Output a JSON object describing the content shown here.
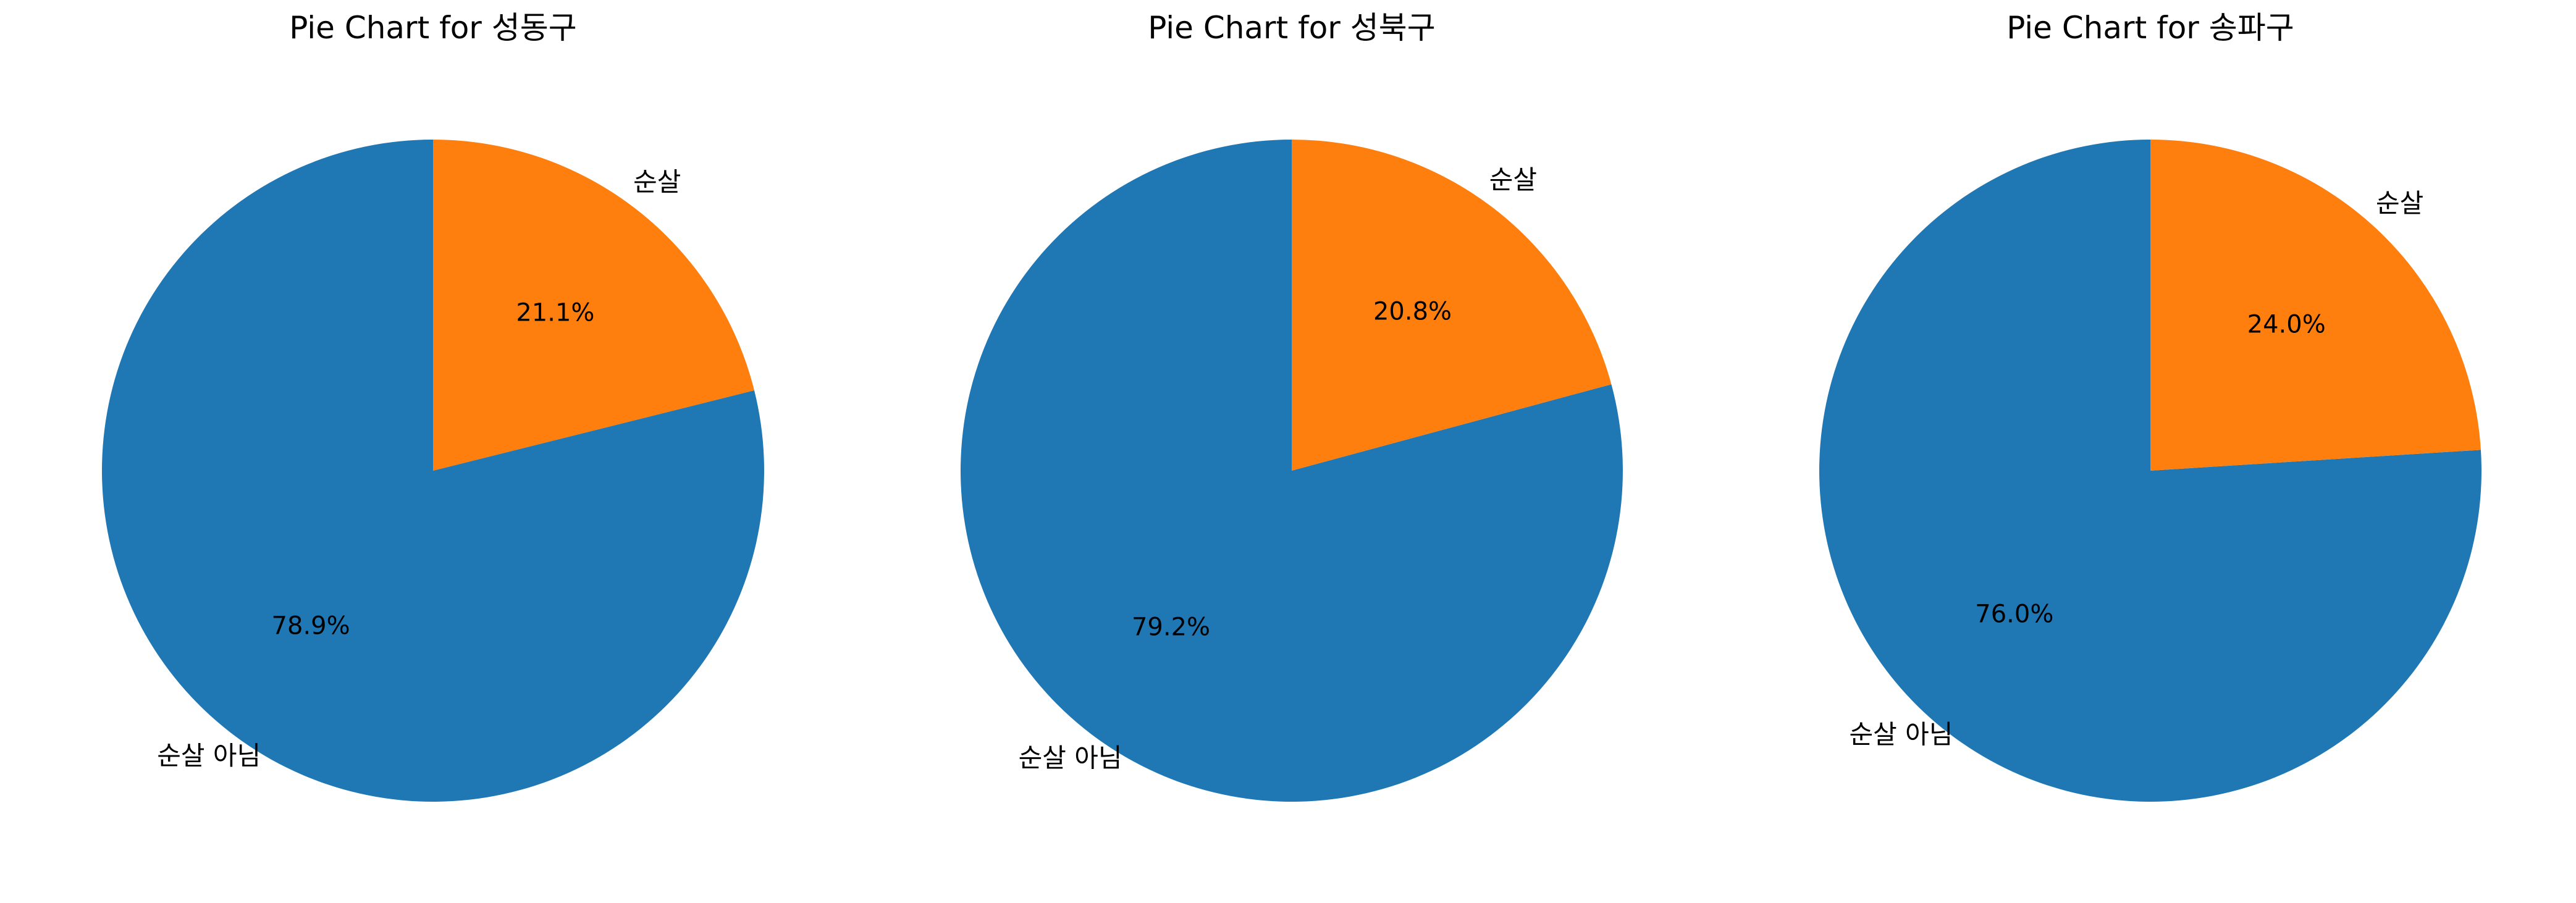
{
  "chart_data": [
    {
      "type": "pie",
      "title": "Pie Chart for 성동구",
      "labels": [
        "순살 아님",
        "순살"
      ],
      "values": [
        78.9,
        21.1
      ],
      "value_labels": [
        "78.9%",
        "21.1%"
      ],
      "colors": [
        "#1f77b4",
        "#ff7f0e"
      ],
      "start_angle_deg": 90,
      "direction": "counterclockwise"
    },
    {
      "type": "pie",
      "title": "Pie Chart for 성북구",
      "labels": [
        "순살 아님",
        "순살"
      ],
      "values": [
        79.2,
        20.8
      ],
      "value_labels": [
        "79.2%",
        "20.8%"
      ],
      "colors": [
        "#1f77b4",
        "#ff7f0e"
      ],
      "start_angle_deg": 90,
      "direction": "counterclockwise"
    },
    {
      "type": "pie",
      "title": "Pie Chart for 송파구",
      "labels": [
        "순살 아님",
        "순살"
      ],
      "values": [
        76.0,
        24.0
      ],
      "value_labels": [
        "76.0%",
        "24.0%"
      ],
      "colors": [
        "#1f77b4",
        "#ff7f0e"
      ],
      "start_angle_deg": 90,
      "direction": "counterclockwise"
    }
  ]
}
